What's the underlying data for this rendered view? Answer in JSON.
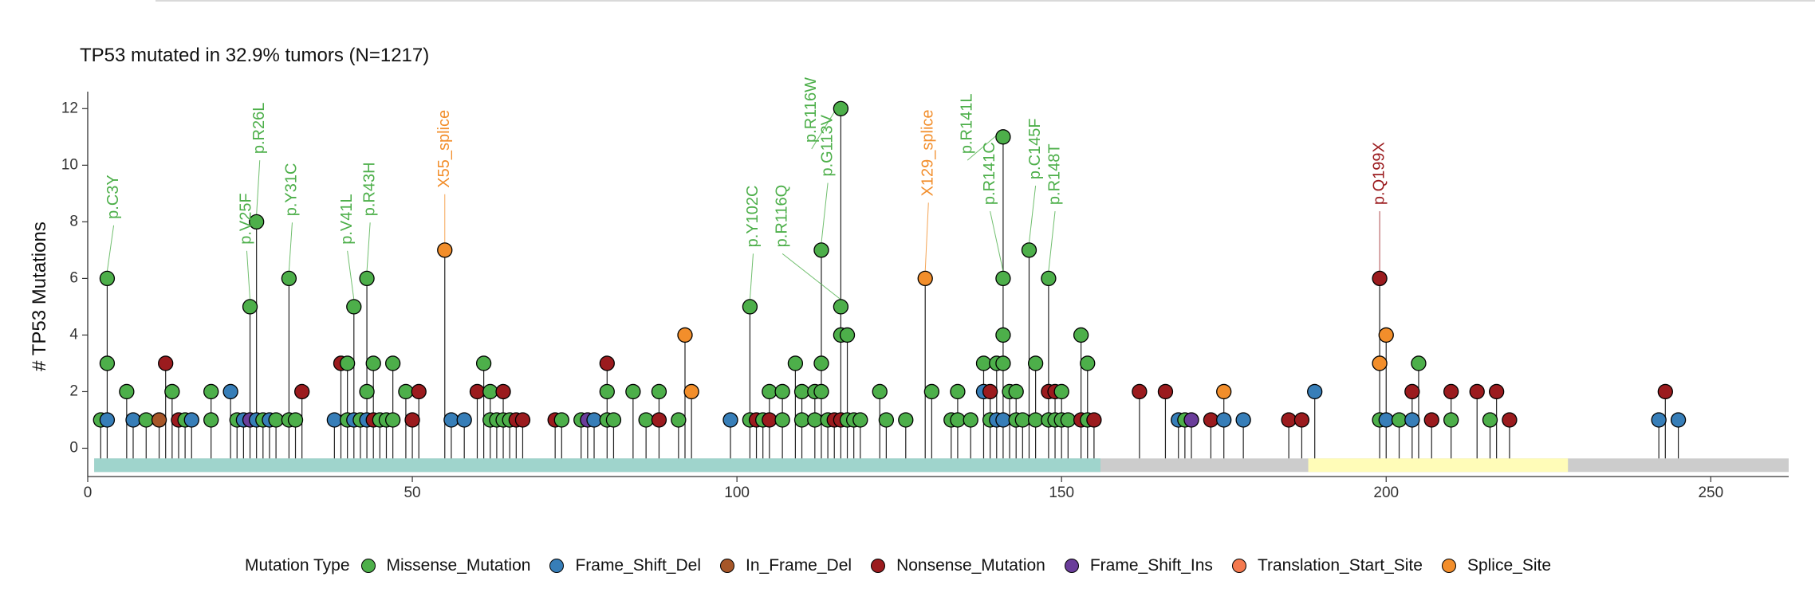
{
  "chart_data": {
    "type": "lollipop",
    "title": "TP53 mutated in 32.9% tumors (N=1217)",
    "ylabel": "# TP53 Mutations",
    "xlim": [
      0,
      262
    ],
    "ylim": [
      -1,
      12.6
    ],
    "xticks": [
      0,
      50,
      100,
      150,
      200,
      250
    ],
    "yticks": [
      0,
      2,
      4,
      6,
      8,
      10,
      12
    ],
    "legend_title": "Mutation Type",
    "legend": [
      {
        "name": "Missense_Mutation",
        "color": "#4DAF4A"
      },
      {
        "name": "Frame_Shift_Del",
        "color": "#377EB8"
      },
      {
        "name": "In_Frame_Del",
        "color": "#A65628"
      },
      {
        "name": "Nonsense_Mutation",
        "color": "#9B1B1E"
      },
      {
        "name": "Frame_Shift_Ins",
        "color": "#6A3D9A"
      },
      {
        "name": "Translation_Start_Site",
        "color": "#F4794E"
      },
      {
        "name": "Splice_Site",
        "color": "#F28E2B"
      }
    ],
    "protein_track": {
      "range": [
        1,
        262
      ],
      "color": "#CCCCCC"
    },
    "domains": [
      {
        "start": 1,
        "end": 156,
        "color": "#9FD4CC"
      },
      {
        "start": 188,
        "end": 228,
        "color": "#FFFCB8"
      }
    ],
    "mutations": [
      {
        "pos": 2,
        "count": 1,
        "type": "Missense_Mutation"
      },
      {
        "pos": 3,
        "count": 6,
        "type": "Missense_Mutation"
      },
      {
        "pos": 3,
        "count": 3,
        "type": "Missense_Mutation"
      },
      {
        "pos": 3,
        "count": 1,
        "type": "Frame_Shift_Del"
      },
      {
        "pos": 6,
        "count": 2,
        "type": "Missense_Mutation"
      },
      {
        "pos": 7,
        "count": 1,
        "type": "Frame_Shift_Del"
      },
      {
        "pos": 9,
        "count": 1,
        "type": "Missense_Mutation"
      },
      {
        "pos": 11,
        "count": 1,
        "type": "In_Frame_Del"
      },
      {
        "pos": 12,
        "count": 3,
        "type": "Nonsense_Mutation"
      },
      {
        "pos": 13,
        "count": 2,
        "type": "Missense_Mutation"
      },
      {
        "pos": 14,
        "count": 1,
        "type": "Nonsense_Mutation"
      },
      {
        "pos": 15,
        "count": 1,
        "type": "Missense_Mutation"
      },
      {
        "pos": 16,
        "count": 1,
        "type": "Frame_Shift_Del"
      },
      {
        "pos": 19,
        "count": 2,
        "type": "Missense_Mutation"
      },
      {
        "pos": 19,
        "count": 1,
        "type": "Missense_Mutation"
      },
      {
        "pos": 22,
        "count": 2,
        "type": "Frame_Shift_Del"
      },
      {
        "pos": 23,
        "count": 1,
        "type": "Missense_Mutation"
      },
      {
        "pos": 24,
        "count": 1,
        "type": "Frame_Shift_Del"
      },
      {
        "pos": 25,
        "count": 5,
        "type": "Missense_Mutation"
      },
      {
        "pos": 25,
        "count": 1,
        "type": "Frame_Shift_Ins"
      },
      {
        "pos": 26,
        "count": 8,
        "type": "Missense_Mutation"
      },
      {
        "pos": 26,
        "count": 1,
        "type": "Frame_Shift_Del"
      },
      {
        "pos": 27,
        "count": 1,
        "type": "Missense_Mutation"
      },
      {
        "pos": 28,
        "count": 1,
        "type": "Frame_Shift_Del"
      },
      {
        "pos": 29,
        "count": 1,
        "type": "Missense_Mutation"
      },
      {
        "pos": 31,
        "count": 6,
        "type": "Missense_Mutation"
      },
      {
        "pos": 31,
        "count": 1,
        "type": "Missense_Mutation"
      },
      {
        "pos": 32,
        "count": 1,
        "type": "Missense_Mutation"
      },
      {
        "pos": 33,
        "count": 2,
        "type": "Nonsense_Mutation"
      },
      {
        "pos": 38,
        "count": 1,
        "type": "Frame_Shift_Del"
      },
      {
        "pos": 39,
        "count": 3,
        "type": "Nonsense_Mutation"
      },
      {
        "pos": 40,
        "count": 3,
        "type": "Missense_Mutation"
      },
      {
        "pos": 40,
        "count": 1,
        "type": "Missense_Mutation"
      },
      {
        "pos": 41,
        "count": 5,
        "type": "Missense_Mutation"
      },
      {
        "pos": 41,
        "count": 1,
        "type": "Frame_Shift_Del"
      },
      {
        "pos": 42,
        "count": 1,
        "type": "Missense_Mutation"
      },
      {
        "pos": 43,
        "count": 6,
        "type": "Missense_Mutation"
      },
      {
        "pos": 43,
        "count": 2,
        "type": "Missense_Mutation"
      },
      {
        "pos": 43,
        "count": 1,
        "type": "Frame_Shift_Del"
      },
      {
        "pos": 44,
        "count": 3,
        "type": "Missense_Mutation"
      },
      {
        "pos": 44,
        "count": 1,
        "type": "Nonsense_Mutation"
      },
      {
        "pos": 45,
        "count": 1,
        "type": "Missense_Mutation"
      },
      {
        "pos": 46,
        "count": 1,
        "type": "Missense_Mutation"
      },
      {
        "pos": 47,
        "count": 3,
        "type": "Missense_Mutation"
      },
      {
        "pos": 47,
        "count": 1,
        "type": "Missense_Mutation"
      },
      {
        "pos": 49,
        "count": 2,
        "type": "Missense_Mutation"
      },
      {
        "pos": 50,
        "count": 1,
        "type": "Nonsense_Mutation"
      },
      {
        "pos": 51,
        "count": 2,
        "type": "Nonsense_Mutation"
      },
      {
        "pos": 55,
        "count": 7,
        "type": "Splice_Site"
      },
      {
        "pos": 56,
        "count": 1,
        "type": "Frame_Shift_Del"
      },
      {
        "pos": 58,
        "count": 1,
        "type": "Frame_Shift_Del"
      },
      {
        "pos": 60,
        "count": 2,
        "type": "Nonsense_Mutation"
      },
      {
        "pos": 61,
        "count": 3,
        "type": "Missense_Mutation"
      },
      {
        "pos": 62,
        "count": 2,
        "type": "Missense_Mutation"
      },
      {
        "pos": 62,
        "count": 1,
        "type": "Missense_Mutation"
      },
      {
        "pos": 63,
        "count": 1,
        "type": "Missense_Mutation"
      },
      {
        "pos": 64,
        "count": 2,
        "type": "Nonsense_Mutation"
      },
      {
        "pos": 64,
        "count": 1,
        "type": "Missense_Mutation"
      },
      {
        "pos": 65,
        "count": 1,
        "type": "Missense_Mutation"
      },
      {
        "pos": 66,
        "count": 1,
        "type": "Nonsense_Mutation"
      },
      {
        "pos": 67,
        "count": 1,
        "type": "Nonsense_Mutation"
      },
      {
        "pos": 72,
        "count": 1,
        "type": "Nonsense_Mutation"
      },
      {
        "pos": 73,
        "count": 1,
        "type": "Missense_Mutation"
      },
      {
        "pos": 76,
        "count": 1,
        "type": "Missense_Mutation"
      },
      {
        "pos": 77,
        "count": 1,
        "type": "Frame_Shift_Ins"
      },
      {
        "pos": 78,
        "count": 1,
        "type": "Frame_Shift_Del"
      },
      {
        "pos": 80,
        "count": 3,
        "type": "Nonsense_Mutation"
      },
      {
        "pos": 80,
        "count": 2,
        "type": "Missense_Mutation"
      },
      {
        "pos": 80,
        "count": 1,
        "type": "Missense_Mutation"
      },
      {
        "pos": 81,
        "count": 1,
        "type": "Missense_Mutation"
      },
      {
        "pos": 84,
        "count": 2,
        "type": "Missense_Mutation"
      },
      {
        "pos": 86,
        "count": 1,
        "type": "Missense_Mutation"
      },
      {
        "pos": 88,
        "count": 2,
        "type": "Missense_Mutation"
      },
      {
        "pos": 88,
        "count": 1,
        "type": "Nonsense_Mutation"
      },
      {
        "pos": 91,
        "count": 1,
        "type": "Missense_Mutation"
      },
      {
        "pos": 92,
        "count": 4,
        "type": "Splice_Site"
      },
      {
        "pos": 93,
        "count": 2,
        "type": "Splice_Site"
      },
      {
        "pos": 99,
        "count": 1,
        "type": "Frame_Shift_Del"
      },
      {
        "pos": 102,
        "count": 5,
        "type": "Missense_Mutation"
      },
      {
        "pos": 102,
        "count": 1,
        "type": "Missense_Mutation"
      },
      {
        "pos": 103,
        "count": 1,
        "type": "Nonsense_Mutation"
      },
      {
        "pos": 104,
        "count": 1,
        "type": "Missense_Mutation"
      },
      {
        "pos": 105,
        "count": 2,
        "type": "Missense_Mutation"
      },
      {
        "pos": 105,
        "count": 1,
        "type": "Nonsense_Mutation"
      },
      {
        "pos": 107,
        "count": 2,
        "type": "Missense_Mutation"
      },
      {
        "pos": 107,
        "count": 1,
        "type": "Missense_Mutation"
      },
      {
        "pos": 109,
        "count": 3,
        "type": "Missense_Mutation"
      },
      {
        "pos": 110,
        "count": 2,
        "type": "Missense_Mutation"
      },
      {
        "pos": 110,
        "count": 1,
        "type": "Missense_Mutation"
      },
      {
        "pos": 112,
        "count": 2,
        "type": "Missense_Mutation"
      },
      {
        "pos": 112,
        "count": 1,
        "type": "Missense_Mutation"
      },
      {
        "pos": 113,
        "count": 7,
        "type": "Missense_Mutation"
      },
      {
        "pos": 113,
        "count": 3,
        "type": "Missense_Mutation"
      },
      {
        "pos": 113,
        "count": 2,
        "type": "Missense_Mutation"
      },
      {
        "pos": 114,
        "count": 1,
        "type": "Missense_Mutation"
      },
      {
        "pos": 115,
        "count": 1,
        "type": "Nonsense_Mutation"
      },
      {
        "pos": 116,
        "count": 12,
        "type": "Missense_Mutation"
      },
      {
        "pos": 116,
        "count": 5,
        "type": "Missense_Mutation"
      },
      {
        "pos": 116,
        "count": 4,
        "type": "Missense_Mutation"
      },
      {
        "pos": 116,
        "count": 1,
        "type": "Nonsense_Mutation"
      },
      {
        "pos": 117,
        "count": 4,
        "type": "Missense_Mutation"
      },
      {
        "pos": 117,
        "count": 1,
        "type": "Missense_Mutation"
      },
      {
        "pos": 118,
        "count": 1,
        "type": "Missense_Mutation"
      },
      {
        "pos": 119,
        "count": 1,
        "type": "Missense_Mutation"
      },
      {
        "pos": 122,
        "count": 2,
        "type": "Missense_Mutation"
      },
      {
        "pos": 123,
        "count": 1,
        "type": "Missense_Mutation"
      },
      {
        "pos": 126,
        "count": 1,
        "type": "Missense_Mutation"
      },
      {
        "pos": 129,
        "count": 6,
        "type": "Splice_Site"
      },
      {
        "pos": 130,
        "count": 2,
        "type": "Missense_Mutation"
      },
      {
        "pos": 133,
        "count": 1,
        "type": "Missense_Mutation"
      },
      {
        "pos": 134,
        "count": 2,
        "type": "Missense_Mutation"
      },
      {
        "pos": 134,
        "count": 1,
        "type": "Missense_Mutation"
      },
      {
        "pos": 136,
        "count": 1,
        "type": "Missense_Mutation"
      },
      {
        "pos": 138,
        "count": 3,
        "type": "Missense_Mutation"
      },
      {
        "pos": 138,
        "count": 2,
        "type": "Frame_Shift_Del"
      },
      {
        "pos": 139,
        "count": 2,
        "type": "Nonsense_Mutation"
      },
      {
        "pos": 139,
        "count": 1,
        "type": "Missense_Mutation"
      },
      {
        "pos": 140,
        "count": 3,
        "type": "Missense_Mutation"
      },
      {
        "pos": 140,
        "count": 1,
        "type": "Frame_Shift_Del"
      },
      {
        "pos": 141,
        "count": 11,
        "type": "Missense_Mutation"
      },
      {
        "pos": 141,
        "count": 6,
        "type": "Missense_Mutation"
      },
      {
        "pos": 141,
        "count": 4,
        "type": "Missense_Mutation"
      },
      {
        "pos": 141,
        "count": 3,
        "type": "Missense_Mutation"
      },
      {
        "pos": 141,
        "count": 1,
        "type": "Frame_Shift_Del"
      },
      {
        "pos": 142,
        "count": 2,
        "type": "Missense_Mutation"
      },
      {
        "pos": 143,
        "count": 2,
        "type": "Missense_Mutation"
      },
      {
        "pos": 143,
        "count": 1,
        "type": "Missense_Mutation"
      },
      {
        "pos": 144,
        "count": 1,
        "type": "Missense_Mutation"
      },
      {
        "pos": 145,
        "count": 7,
        "type": "Missense_Mutation"
      },
      {
        "pos": 146,
        "count": 3,
        "type": "Missense_Mutation"
      },
      {
        "pos": 146,
        "count": 1,
        "type": "Missense_Mutation"
      },
      {
        "pos": 148,
        "count": 6,
        "type": "Missense_Mutation"
      },
      {
        "pos": 148,
        "count": 2,
        "type": "Nonsense_Mutation"
      },
      {
        "pos": 148,
        "count": 1,
        "type": "Missense_Mutation"
      },
      {
        "pos": 149,
        "count": 2,
        "type": "Nonsense_Mutation"
      },
      {
        "pos": 149,
        "count": 1,
        "type": "Missense_Mutation"
      },
      {
        "pos": 150,
        "count": 2,
        "type": "Missense_Mutation"
      },
      {
        "pos": 150,
        "count": 1,
        "type": "Missense_Mutation"
      },
      {
        "pos": 151,
        "count": 1,
        "type": "Missense_Mutation"
      },
      {
        "pos": 153,
        "count": 4,
        "type": "Missense_Mutation"
      },
      {
        "pos": 153,
        "count": 1,
        "type": "Nonsense_Mutation"
      },
      {
        "pos": 154,
        "count": 3,
        "type": "Missense_Mutation"
      },
      {
        "pos": 154,
        "count": 1,
        "type": "Missense_Mutation"
      },
      {
        "pos": 155,
        "count": 1,
        "type": "Nonsense_Mutation"
      },
      {
        "pos": 162,
        "count": 2,
        "type": "Nonsense_Mutation"
      },
      {
        "pos": 166,
        "count": 2,
        "type": "Nonsense_Mutation"
      },
      {
        "pos": 168,
        "count": 1,
        "type": "Frame_Shift_Del"
      },
      {
        "pos": 169,
        "count": 1,
        "type": "Missense_Mutation"
      },
      {
        "pos": 170,
        "count": 1,
        "type": "Frame_Shift_Ins"
      },
      {
        "pos": 173,
        "count": 1,
        "type": "Nonsense_Mutation"
      },
      {
        "pos": 175,
        "count": 2,
        "type": "Splice_Site"
      },
      {
        "pos": 175,
        "count": 1,
        "type": "Frame_Shift_Del"
      },
      {
        "pos": 178,
        "count": 1,
        "type": "Frame_Shift_Del"
      },
      {
        "pos": 185,
        "count": 1,
        "type": "Nonsense_Mutation"
      },
      {
        "pos": 187,
        "count": 1,
        "type": "Nonsense_Mutation"
      },
      {
        "pos": 189,
        "count": 2,
        "type": "Frame_Shift_Del"
      },
      {
        "pos": 199,
        "count": 6,
        "type": "Nonsense_Mutation"
      },
      {
        "pos": 199,
        "count": 3,
        "type": "Splice_Site"
      },
      {
        "pos": 199,
        "count": 1,
        "type": "Missense_Mutation"
      },
      {
        "pos": 200,
        "count": 4,
        "type": "Splice_Site"
      },
      {
        "pos": 200,
        "count": 1,
        "type": "Frame_Shift_Del"
      },
      {
        "pos": 202,
        "count": 1,
        "type": "Missense_Mutation"
      },
      {
        "pos": 204,
        "count": 2,
        "type": "Nonsense_Mutation"
      },
      {
        "pos": 204,
        "count": 1,
        "type": "Frame_Shift_Del"
      },
      {
        "pos": 205,
        "count": 3,
        "type": "Missense_Mutation"
      },
      {
        "pos": 207,
        "count": 1,
        "type": "Nonsense_Mutation"
      },
      {
        "pos": 210,
        "count": 2,
        "type": "Nonsense_Mutation"
      },
      {
        "pos": 210,
        "count": 1,
        "type": "Missense_Mutation"
      },
      {
        "pos": 214,
        "count": 2,
        "type": "Nonsense_Mutation"
      },
      {
        "pos": 216,
        "count": 1,
        "type": "Missense_Mutation"
      },
      {
        "pos": 217,
        "count": 2,
        "type": "Nonsense_Mutation"
      },
      {
        "pos": 219,
        "count": 1,
        "type": "Nonsense_Mutation"
      },
      {
        "pos": 242,
        "count": 1,
        "type": "Frame_Shift_Del"
      },
      {
        "pos": 243,
        "count": 2,
        "type": "Nonsense_Mutation"
      },
      {
        "pos": 245,
        "count": 1,
        "type": "Frame_Shift_Del"
      }
    ],
    "annotations": [
      {
        "text": "p.C3Y",
        "pos": 3,
        "count": 6,
        "color": "#4DAF4A"
      },
      {
        "text": "p.V25F",
        "pos": 25,
        "count": 5,
        "color": "#4DAF4A"
      },
      {
        "text": "p.R26L",
        "pos": 26,
        "count": 8,
        "color": "#4DAF4A"
      },
      {
        "text": "p.Y31C",
        "pos": 31,
        "count": 6,
        "color": "#4DAF4A"
      },
      {
        "text": "p.V41L",
        "pos": 41,
        "count": 5,
        "color": "#4DAF4A"
      },
      {
        "text": "p.R43H",
        "pos": 43,
        "count": 6,
        "color": "#4DAF4A"
      },
      {
        "text": "X55_splice",
        "pos": 55,
        "count": 7,
        "color": "#F28E2B"
      },
      {
        "text": "p.Y102C",
        "pos": 102,
        "count": 5,
        "color": "#4DAF4A"
      },
      {
        "text": "p.R116Q",
        "pos": 116,
        "count": 5,
        "color": "#4DAF4A"
      },
      {
        "text": "p.R116W",
        "pos": 116,
        "count": 12,
        "color": "#4DAF4A"
      },
      {
        "text": "p.G113V",
        "pos": 113,
        "count": 7,
        "color": "#4DAF4A"
      },
      {
        "text": "X129_splice",
        "pos": 129,
        "count": 6,
        "color": "#F28E2B"
      },
      {
        "text": "p.R141L",
        "pos": 141,
        "count": 11,
        "color": "#4DAF4A"
      },
      {
        "text": "p.R141C",
        "pos": 141,
        "count": 6,
        "color": "#4DAF4A"
      },
      {
        "text": "p.C145F",
        "pos": 145,
        "count": 7,
        "color": "#4DAF4A"
      },
      {
        "text": "p.R148T",
        "pos": 148,
        "count": 6,
        "color": "#4DAF4A"
      },
      {
        "text": "p.Q199X",
        "pos": 199,
        "count": 6,
        "color": "#9B1B1E"
      }
    ]
  }
}
